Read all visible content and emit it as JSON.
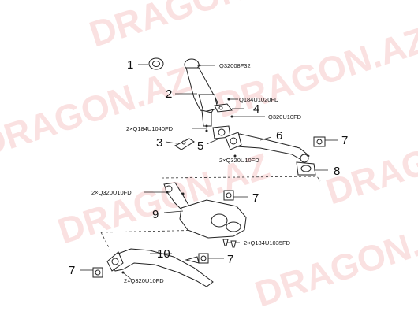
{
  "watermark": {
    "text": "DRAGON.AZ",
    "color": "#f6c9c9"
  },
  "callouts": [
    {
      "id": "1",
      "label": "1"
    },
    {
      "id": "2",
      "label": "2"
    },
    {
      "id": "3",
      "label": "3"
    },
    {
      "id": "4",
      "label": "4"
    },
    {
      "id": "5",
      "label": "5"
    },
    {
      "id": "6",
      "label": "6"
    },
    {
      "id": "7a",
      "label": "7"
    },
    {
      "id": "8",
      "label": "8"
    },
    {
      "id": "7b",
      "label": "7"
    },
    {
      "id": "9",
      "label": "9"
    },
    {
      "id": "10",
      "label": "10"
    },
    {
      "id": "7c",
      "label": "7"
    },
    {
      "id": "7d",
      "label": "7"
    }
  ],
  "part_codes": [
    {
      "id": "c1",
      "text": "Q32008F32"
    },
    {
      "id": "c2",
      "text": "Q184U1020FD"
    },
    {
      "id": "c3",
      "text": "Q320U10FD"
    },
    {
      "id": "c4",
      "text": "2×Q184U1040FD"
    },
    {
      "id": "c5",
      "text": "2×Q320U10FD"
    },
    {
      "id": "c6",
      "text": "2×Q320U10FD"
    },
    {
      "id": "c7",
      "text": "2×Q184U1035FD"
    },
    {
      "id": "c8",
      "text": "2×Q320U10FD"
    }
  ]
}
